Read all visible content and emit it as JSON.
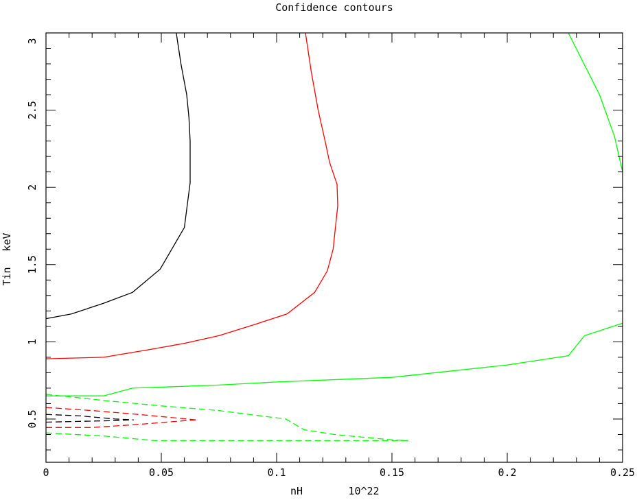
{
  "chart_data": {
    "type": "line",
    "title": "Confidence contours",
    "xlabel": "nH",
    "xunit": "10^22",
    "ylabel": "Tin",
    "yunit": "keV",
    "xlim": [
      0,
      0.25
    ],
    "ylim": [
      0.22,
      3
    ],
    "x_ticks": [
      {
        "value": 0,
        "label": "0"
      },
      {
        "value": 0.05,
        "label": "0.05"
      },
      {
        "value": 0.1,
        "label": "0.1"
      },
      {
        "value": 0.15,
        "label": "0.15"
      },
      {
        "value": 0.2,
        "label": "0.2"
      },
      {
        "value": 0.25,
        "label": "0.25"
      }
    ],
    "y_ticks": [
      {
        "value": 0.5,
        "label": "0.5"
      },
      {
        "value": 1,
        "label": "1"
      },
      {
        "value": 1.5,
        "label": "1.5"
      },
      {
        "value": 2,
        "label": "2"
      },
      {
        "value": 2.5,
        "label": "2.5"
      },
      {
        "value": 3,
        "label": "3"
      }
    ],
    "series": [
      {
        "color": "#000000",
        "dashed": false,
        "x": [
          0.0,
          0.011,
          0.025,
          0.0375,
          0.0495,
          0.06,
          0.0625,
          0.0625,
          0.062,
          0.061,
          0.0585,
          0.0565
        ],
        "y": [
          1.15,
          1.18,
          1.25,
          1.32,
          1.47,
          1.74,
          2.03,
          2.3,
          2.45,
          2.6,
          2.8,
          3.0
        ]
      },
      {
        "color": "#ff0000",
        "dashed": false,
        "x": [
          0.0,
          0.025,
          0.045,
          0.06,
          0.075,
          0.09,
          0.1045,
          0.1165,
          0.122,
          0.1245,
          0.1265,
          0.1262,
          0.123,
          0.121,
          0.118,
          0.115,
          0.1125
        ],
        "y": [
          0.89,
          0.9,
          0.95,
          0.99,
          1.04,
          1.11,
          1.18,
          1.32,
          1.46,
          1.6,
          1.88,
          2.02,
          2.16,
          2.3,
          2.5,
          2.75,
          3.0
        ]
      },
      {
        "color": "#00ff00",
        "dashed": false,
        "x": [
          0.0,
          0.025,
          0.0375,
          0.075,
          0.1,
          0.15,
          0.2,
          0.2265,
          0.2335,
          0.25
        ],
        "y": [
          0.65,
          0.65,
          0.7,
          0.72,
          0.74,
          0.77,
          0.85,
          0.91,
          1.04,
          1.12
        ]
      },
      {
        "color": "#00ff00",
        "dashed": false,
        "x": [
          0.2265,
          0.24,
          0.2465,
          0.25
        ],
        "y": [
          3.0,
          2.6,
          2.33,
          2.1
        ]
      },
      {
        "color": "#00ff00",
        "dashed": true,
        "x": [
          0.0,
          0.025,
          0.05,
          0.075,
          0.104,
          0.112,
          0.125,
          0.15,
          0.157
        ],
        "y": [
          0.66,
          0.62,
          0.585,
          0.555,
          0.5,
          0.43,
          0.4,
          0.365,
          0.36
        ]
      },
      {
        "color": "#00ff00",
        "dashed": true,
        "x": [
          0.0,
          0.025,
          0.0475,
          0.075,
          0.1,
          0.125,
          0.15,
          0.157
        ],
        "y": [
          0.41,
          0.39,
          0.36,
          0.36,
          0.36,
          0.36,
          0.36,
          0.36
        ]
      },
      {
        "color": "#ff0000",
        "dashed": true,
        "x": [
          0.0,
          0.02,
          0.04,
          0.065
        ],
        "y": [
          0.575,
          0.555,
          0.53,
          0.495
        ]
      },
      {
        "color": "#ff0000",
        "dashed": true,
        "x": [
          0.0,
          0.02,
          0.04,
          0.065
        ],
        "y": [
          0.445,
          0.445,
          0.465,
          0.495
        ]
      },
      {
        "color": "#000000",
        "dashed": true,
        "x": [
          0.0,
          0.015,
          0.03,
          0.038
        ],
        "y": [
          0.53,
          0.52,
          0.5,
          0.495
        ]
      },
      {
        "color": "#000000",
        "dashed": true,
        "x": [
          0.0,
          0.015,
          0.03,
          0.038
        ],
        "y": [
          0.48,
          0.485,
          0.49,
          0.495
        ]
      }
    ]
  }
}
